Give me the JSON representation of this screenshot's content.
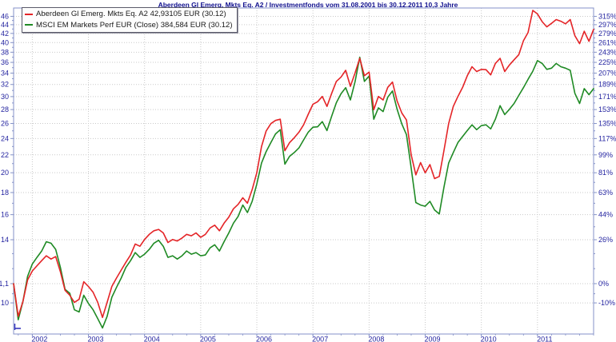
{
  "chart_data": {
    "type": "line",
    "title": "Aberdeen Gl Emerg. Mkts Eq. A2 / Investmentfonds vom 31.08.2001 bis 30.12.2011 10,3 Jahre",
    "period_start": "31.08.2001",
    "period_end": "30.12.2011",
    "period_length_label": "10,3 Jahre",
    "x_unit": "monthly",
    "start_month": "2001-08",
    "end_month": "2011-12",
    "base_value_eur": 11.08,
    "grid": true,
    "legend_position": "top-left",
    "x_tick_labels": [
      "2002",
      "2003",
      "2004",
      "2005",
      "2006",
      "2007",
      "2008",
      "2009",
      "2010",
      "2011"
    ],
    "y_axis_left": {
      "unit": "EUR",
      "labels": [
        "46",
        "44",
        "42",
        "40",
        "38",
        "36",
        "34",
        "32",
        "30",
        "28",
        "26",
        "24",
        "22",
        "20",
        "18",
        "16",
        "14",
        "11,1",
        "10"
      ],
      "values": [
        46,
        44,
        42,
        40,
        38,
        36,
        34,
        32,
        30,
        28,
        26,
        24,
        22,
        20,
        18,
        16,
        14,
        11.08,
        10
      ],
      "minor_tick_values": [
        45,
        43,
        41,
        39,
        37,
        35,
        33,
        31,
        29,
        27,
        25,
        23,
        21,
        19,
        17,
        15,
        13,
        12,
        10.5
      ],
      "scale": "log"
    },
    "y_axis_right": {
      "unit": "percent",
      "labels": [
        "315%",
        "297%",
        "279%",
        "261%",
        "243%",
        "225%",
        "207%",
        "189%",
        "171%",
        "153%",
        "135%",
        "117%",
        "99%",
        "81%",
        "63%",
        "44%",
        "26%",
        "0%",
        "-10%"
      ],
      "range_percent": [
        -18,
        335
      ]
    },
    "series": [
      {
        "name": "Aberdeen Gl Emerg. Mkts Eq. A2",
        "legend_label": "Aberdeen Gl Emerg. Mkts Eq. A2 42,93105 EUR (30.12)",
        "final_value": "42,93105 EUR (30.12)",
        "color": "#e42427",
        "percent": [
          0,
          -16,
          -9,
          2,
          7,
          10,
          13,
          16,
          14,
          15.5,
          6.5,
          -3.5,
          -6,
          -9.5,
          -8,
          1,
          -1.5,
          -4.5,
          -9.5,
          -16.5,
          -9.5,
          -1.5,
          3,
          7.5,
          12,
          16.5,
          23.5,
          22,
          26.5,
          30,
          32.5,
          33.5,
          31,
          24.5,
          26.5,
          25.5,
          27.5,
          30,
          29,
          31,
          28,
          30,
          34.5,
          36.5,
          32.5,
          38,
          42.5,
          49,
          52.5,
          58,
          53.5,
          65,
          80.5,
          107.5,
          125.5,
          134.5,
          138.5,
          140,
          103,
          112,
          117.5,
          124,
          133,
          146.5,
          160,
          163.5,
          171,
          157,
          175.5,
          193.5,
          200.5,
          211.5,
          186,
          207,
          232,
          202.5,
          208.5,
          152.5,
          171,
          166,
          184.5,
          192.5,
          164.5,
          148,
          139,
          98.5,
          78.5,
          90.5,
          80.5,
          88.5,
          75,
          77,
          103,
          134.5,
          157,
          171,
          184.5,
          202.5,
          217.5,
          209.5,
          213,
          212.5,
          204,
          223,
          232,
          209.5,
          220.5,
          229.5,
          238.5,
          264.5,
          281,
          328.5,
          320.5,
          303.5,
          292.5,
          300,
          308,
          304.5,
          299,
          308,
          274.5,
          259,
          283.5,
          263.5,
          287.5
        ]
      },
      {
        "name": "MSCI EM Markets Perf EUR (Close)",
        "legend_label": "MSCI EM Markets Perf EUR (Close) 384,584 EUR (30.12)",
        "final_value": "384,584 EUR (30.12)",
        "color": "#1f8a24",
        "percent": [
          0,
          -17.5,
          -9,
          4,
          11,
          15,
          19,
          25,
          24,
          20,
          9,
          -3,
          -5,
          -13,
          -14,
          -6,
          -10,
          -13,
          -17,
          -21,
          -16,
          -7,
          -2,
          3,
          9,
          13,
          18,
          15,
          17,
          20,
          24,
          26,
          22,
          15,
          16,
          14,
          16,
          19,
          17,
          18,
          16,
          16.5,
          21,
          23,
          19,
          25,
          31,
          38,
          43,
          52,
          46,
          55,
          70,
          90,
          102,
          112,
          122,
          127,
          89,
          97,
          101,
          106,
          115,
          124,
          130,
          130.5,
          137,
          126,
          144,
          162,
          175,
          184,
          166,
          193,
          234,
          193.5,
          202,
          140,
          155,
          150,
          170,
          179,
          153,
          134,
          121,
          85,
          54,
          52,
          51,
          55,
          48,
          45,
          67,
          90,
          101,
          112,
          119,
          126,
          133,
          127,
          132,
          133,
          128,
          140,
          158,
          146,
          153,
          161,
          172.5,
          184,
          197,
          210,
          228,
          223,
          213,
          215,
          223,
          217.5,
          215,
          211.5,
          175.5,
          161,
          182.5,
          173.5,
          182.5
        ]
      }
    ],
    "colors": {
      "title_text": "#10108e",
      "axis_text": "#2424a0",
      "frame": "#8492c8",
      "grid": "#c9c9c9",
      "start_marker": "#2a2ab8",
      "legend_border": "#5a5a6a"
    }
  }
}
